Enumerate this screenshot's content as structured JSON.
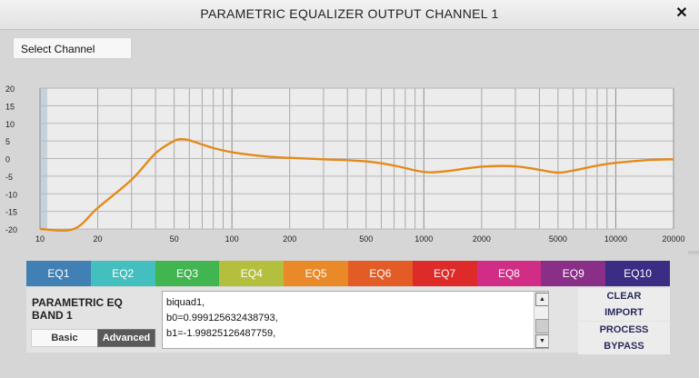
{
  "window": {
    "title": "PARAMETRIC EQUALIZER OUTPUT CHANNEL 1"
  },
  "select_channel": {
    "label": "Select Channel"
  },
  "chart_data": {
    "type": "line",
    "x_scale": "log",
    "xlim": [
      10,
      20000
    ],
    "ylim": [
      -20,
      20
    ],
    "grid": true,
    "x_ticks": [
      "10",
      "20",
      "50",
      "100",
      "200",
      "500",
      "1000",
      "2000",
      "5000",
      "10000",
      "20000"
    ],
    "y_ticks": [
      "20",
      "15",
      "10",
      "5",
      "0",
      "-5",
      "-10",
      "-15",
      "-20"
    ],
    "series": [
      {
        "color": "#e48a1a",
        "x": [
          10,
          15,
          20,
          30,
          40,
          50,
          55,
          60,
          70,
          80,
          100,
          150,
          200,
          300,
          500,
          700,
          1000,
          1300,
          2000,
          3000,
          4000,
          5000,
          6000,
          8000,
          10000,
          15000,
          20000
        ],
        "y": [
          -20,
          -20,
          -14,
          -6,
          1.5,
          5,
          5.5,
          5.2,
          4,
          3,
          1.8,
          0.6,
          0.2,
          -0.2,
          -0.8,
          -2,
          -3.8,
          -3.6,
          -2.3,
          -2.2,
          -3.2,
          -4,
          -3.4,
          -2,
          -1.2,
          -0.4,
          -0.2
        ]
      }
    ]
  },
  "tabs": [
    {
      "label": "EQ1",
      "color": "#4180b5"
    },
    {
      "label": "EQ2",
      "color": "#42bfbe"
    },
    {
      "label": "EQ3",
      "color": "#41b54f"
    },
    {
      "label": "EQ4",
      "color": "#b4c03d"
    },
    {
      "label": "EQ5",
      "color": "#e98927"
    },
    {
      "label": "EQ6",
      "color": "#e35b25"
    },
    {
      "label": "EQ7",
      "color": "#df2a2a"
    },
    {
      "label": "EQ8",
      "color": "#d12c86"
    },
    {
      "label": "EQ9",
      "color": "#8a2f88"
    },
    {
      "label": "EQ10",
      "color": "#3b2c84"
    }
  ],
  "band": {
    "title": "PARAMETRIC EQ\nBAND 1",
    "basic_label": "Basic",
    "advanced_label": "Advanced"
  },
  "coefficients": {
    "lines": [
      "biquad1,",
      "b0=0.999125632438793,",
      "b1=-1.99825126487759,"
    ]
  },
  "actions": {
    "clear": "CLEAR",
    "import": "IMPORT",
    "process": "PROCESS",
    "bypass": "BYPASS"
  },
  "icons": {
    "close": "close-icon",
    "scroll_up": "arrow-up-icon",
    "scroll_down": "arrow-down-icon"
  }
}
